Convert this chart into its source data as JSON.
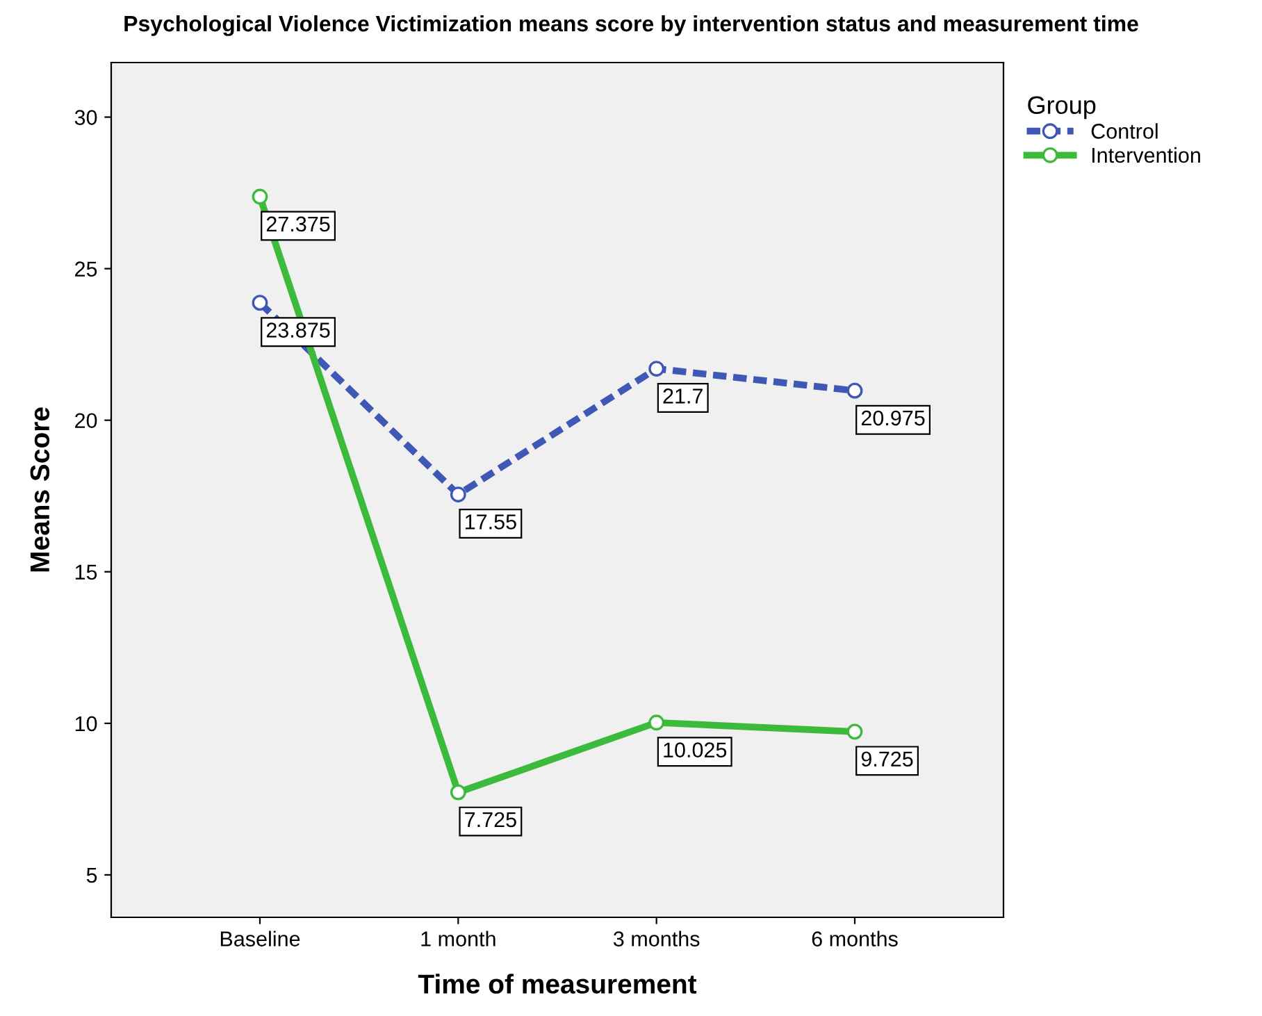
{
  "chart_data": {
    "type": "line",
    "title": "Psychological Violence Victimization means score by intervention status and measurement time",
    "xlabel": "Time of measurement",
    "ylabel": "Means Score",
    "legend_title": "Group",
    "categories": [
      "Baseline",
      "1 month",
      "3 months",
      "6 months"
    ],
    "series": [
      {
        "name": "Control",
        "color": "#3f57b5",
        "values": [
          23.875,
          17.55,
          21.7,
          20.975
        ],
        "line_style": "dashed"
      },
      {
        "name": "Intervention",
        "color": "#3cba3c",
        "values": [
          27.375,
          7.725,
          10.025,
          9.725
        ],
        "line_style": "solid"
      }
    ],
    "ylim": [
      3.6,
      31.8
    ],
    "yticks": [
      5,
      10,
      15,
      20,
      25,
      30
    ],
    "marker": "circle",
    "data_labels": true,
    "legend": "top right",
    "grid": false
  }
}
